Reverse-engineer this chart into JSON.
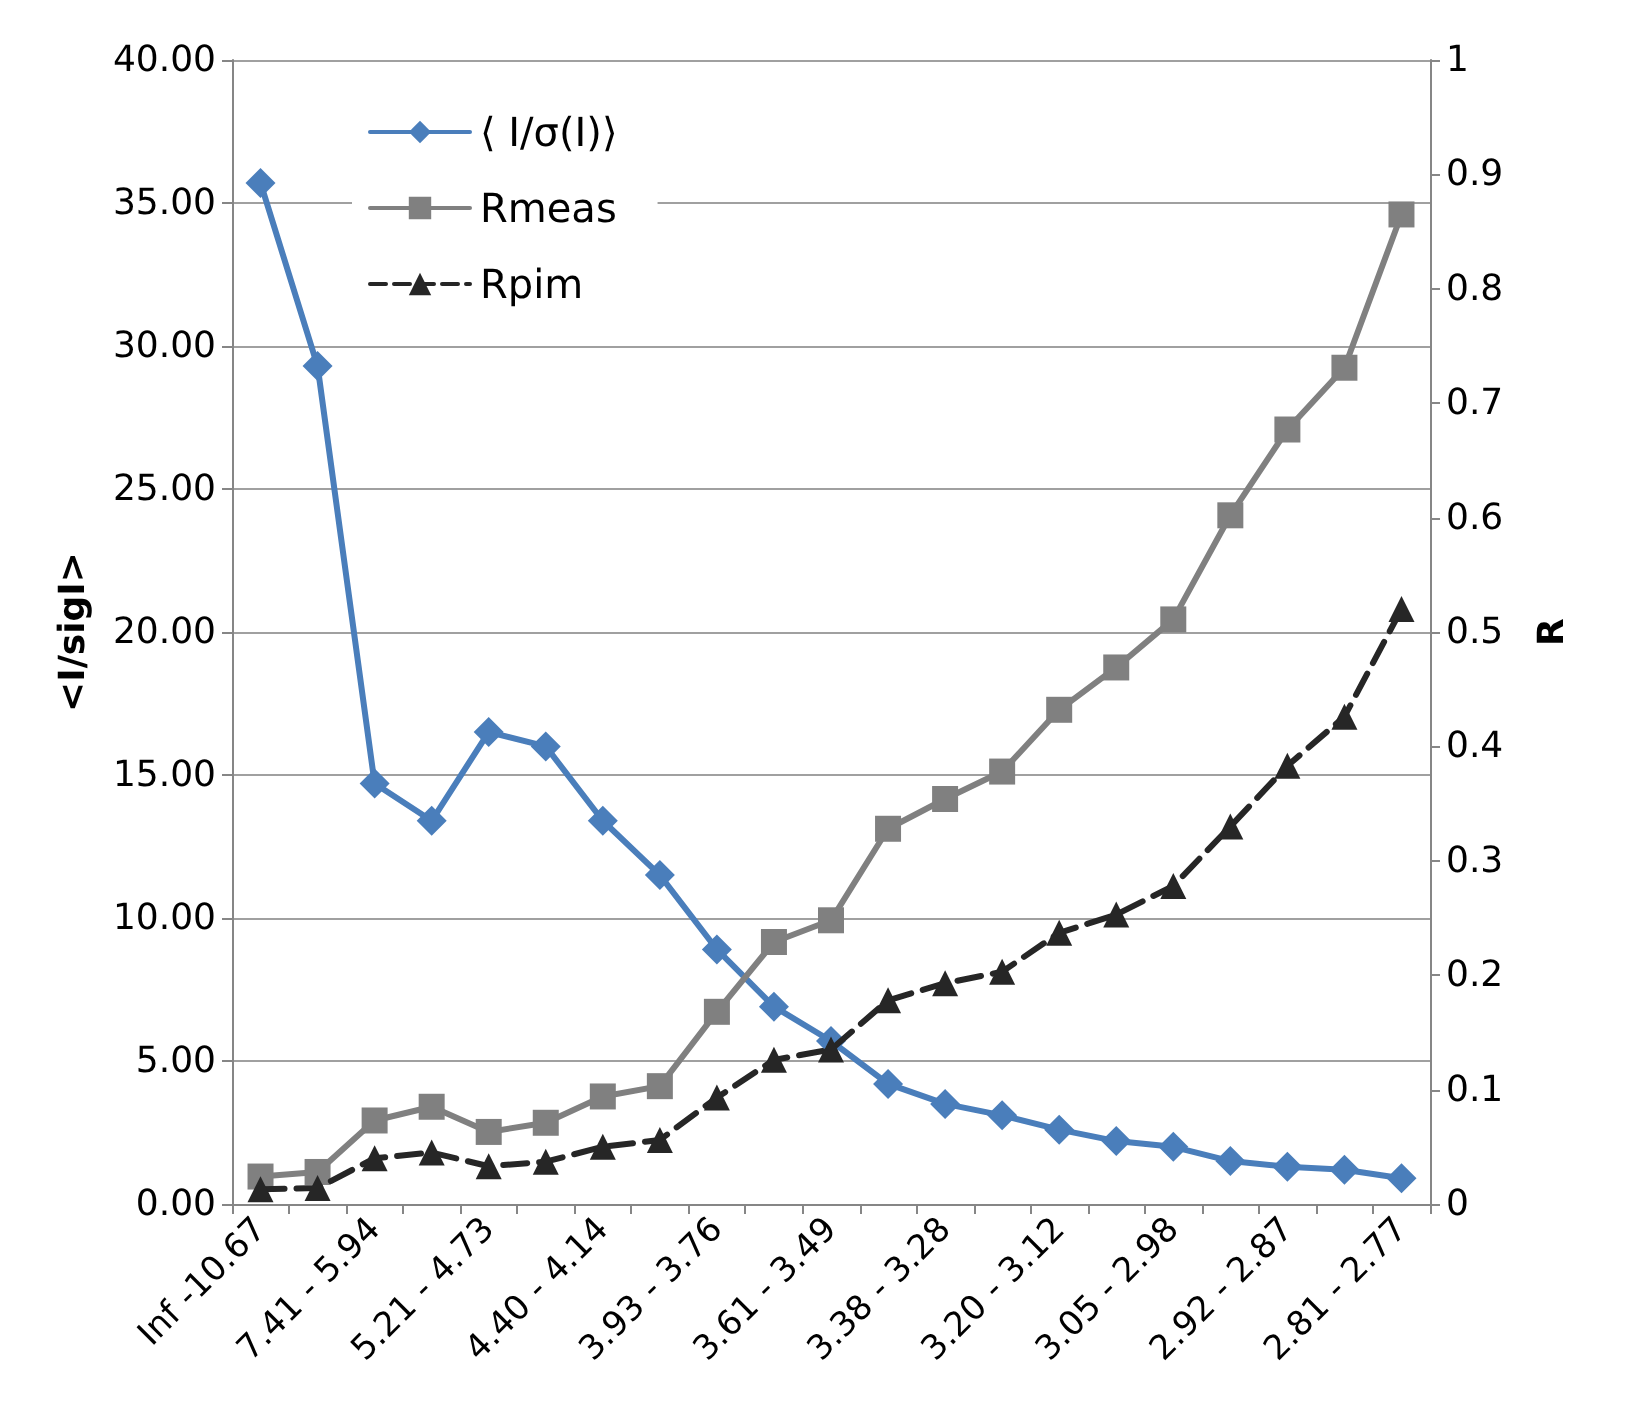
{
  "chart_data": {
    "type": "line",
    "ylabel": "<I/sigI>",
    "y2label": "R",
    "categories": [
      "Inf -10.67",
      null,
      "7.41 - 5.94",
      null,
      "5.21 - 4.73",
      null,
      "4.40 - 4.14",
      null,
      "3.93 - 3.76",
      null,
      "3.61 - 3.49",
      null,
      "3.38 - 3.28",
      null,
      "3.20 - 3.12",
      null,
      "3.05 - 2.98",
      null,
      "2.92 - 2.87",
      null,
      "2.81 - 2.77"
    ],
    "series": [
      {
        "name": "⟨ I/σ(I)⟩",
        "color": "#4a7ebb",
        "marker": "diamond",
        "line_style": "solid",
        "values": [
          35.7,
          29.3,
          14.7,
          13.4,
          16.5,
          16.0,
          13.4,
          11.5,
          8.9,
          6.9,
          5.7,
          4.2,
          3.5,
          3.1,
          2.6,
          2.2,
          2.0,
          1.5,
          1.3,
          1.2,
          0.9
        ]
      },
      {
        "name": "Rmeas",
        "color": "#808080",
        "marker": "square",
        "line_style": "solid",
        "axis": "y2",
        "values": [
          0.024,
          0.028,
          0.073,
          0.085,
          0.063,
          0.071,
          0.094,
          0.103,
          0.168,
          0.229,
          0.248,
          0.328,
          0.354,
          0.378,
          0.432,
          0.469,
          0.511,
          0.602,
          0.677,
          0.731,
          0.865
        ]
      },
      {
        "name": "Rpim",
        "color": "#262626",
        "marker": "triangle",
        "line_style": "dashed",
        "axis": "y2",
        "values": [
          0.013,
          0.014,
          0.04,
          0.045,
          0.033,
          0.037,
          0.05,
          0.056,
          0.093,
          0.126,
          0.135,
          0.178,
          0.193,
          0.203,
          0.237,
          0.253,
          0.278,
          0.33,
          0.383,
          0.426,
          0.52
        ]
      }
    ],
    "ylim": [
      0,
      40
    ],
    "yticks": [
      {
        "value": 0,
        "label": "0.00"
      },
      {
        "value": 5,
        "label": "5.00"
      },
      {
        "value": 10,
        "label": "10.00"
      },
      {
        "value": 15,
        "label": "15.00"
      },
      {
        "value": 20,
        "label": "20.00"
      },
      {
        "value": 25,
        "label": "25.00"
      },
      {
        "value": 30,
        "label": "30.00"
      },
      {
        "value": 35,
        "label": "35.00"
      },
      {
        "value": 40,
        "label": "40.00"
      }
    ],
    "y2lim": [
      0,
      1
    ],
    "y2ticks": [
      0,
      0.1,
      0.2,
      0.3,
      0.4,
      0.5,
      0.6,
      0.7,
      0.8,
      0.9,
      1
    ],
    "grid": "y",
    "legend": "top left"
  }
}
